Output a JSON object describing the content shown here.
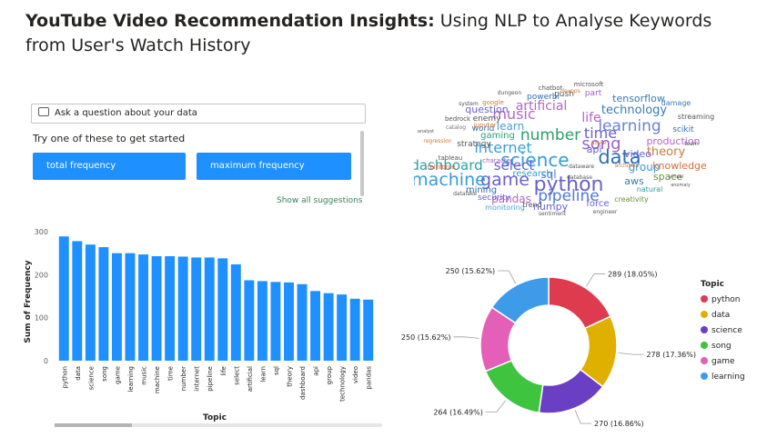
{
  "title": {
    "bold": "YouTube Video Recommendation Insights:",
    "rest": " Using NLP to Analyse Keywords from User's Watch History"
  },
  "qa": {
    "placeholder": "Ask a question about your data",
    "prompt": "Try one of these to get started",
    "suggestions": [
      "total frequency",
      "maximum frequency"
    ],
    "show_all": "Show all suggestions"
  },
  "wordcloud": {
    "words": [
      {
        "text": "python",
        "color": "#6b5fd1"
      },
      {
        "text": "game",
        "color": "#6b5fd1"
      },
      {
        "text": "machine",
        "color": "#3a9bd9"
      },
      {
        "text": "data",
        "color": "#2e6fb5"
      },
      {
        "text": "science",
        "color": "#3a9bd9"
      },
      {
        "text": "song",
        "color": "#9e5fc9"
      },
      {
        "text": "music",
        "color": "#b366c9"
      },
      {
        "text": "number",
        "color": "#2e9e6e"
      },
      {
        "text": "time",
        "color": "#6b5fd1"
      },
      {
        "text": "learning",
        "color": "#6d7fd9"
      },
      {
        "text": "internet",
        "color": "#35a0d8"
      },
      {
        "text": "pipeline",
        "color": "#4e79d9"
      },
      {
        "text": "artificial",
        "color": "#b366c9"
      },
      {
        "text": "technology",
        "color": "#3a7ab5"
      },
      {
        "text": "dashboard",
        "color": "#2e9e9e"
      },
      {
        "text": "select",
        "color": "#6b5fd1"
      },
      {
        "text": "theory",
        "color": "#cc7a3a"
      },
      {
        "text": "life",
        "color": "#b366c9"
      },
      {
        "text": "pandas",
        "color": "#b366c9"
      },
      {
        "text": "group",
        "color": "#3a9bd9"
      },
      {
        "text": "video",
        "color": "#6b5fd1"
      },
      {
        "text": "knowledge",
        "color": "#d96a3a"
      },
      {
        "text": "production",
        "color": "#b366c9"
      },
      {
        "text": "tensorflow",
        "color": "#3a7ab5"
      },
      {
        "text": "question",
        "color": "#6b5fd1"
      },
      {
        "text": "learn",
        "color": "#4ea0d9"
      },
      {
        "text": "api",
        "color": "#6b5fd1"
      },
      {
        "text": "sql",
        "color": "#4e79d9"
      },
      {
        "text": "space",
        "color": "#6b8f3a"
      },
      {
        "text": "aws",
        "color": "#3a7ab5"
      },
      {
        "text": "research",
        "color": "#3a9bd9"
      },
      {
        "text": "mining",
        "color": "#2e6fb5"
      },
      {
        "text": "numpy",
        "color": "#6b5fd1"
      },
      {
        "text": "force",
        "color": "#6b5fd1"
      },
      {
        "text": "gaming",
        "color": "#2e9e6e"
      },
      {
        "text": "strategy",
        "color": "#555555"
      },
      {
        "text": "world",
        "color": "#2e6fb5"
      },
      {
        "text": "enemy",
        "color": "#555555"
      },
      {
        "text": "powerbi",
        "color": "#2e6fb5"
      },
      {
        "text": "push",
        "color": "#555555"
      },
      {
        "text": "part",
        "color": "#9e5fc9"
      },
      {
        "text": "scikit",
        "color": "#2e6fb5"
      },
      {
        "text": "streaming",
        "color": "#555555"
      },
      {
        "text": "damage",
        "color": "#3a7ab5"
      },
      {
        "text": "security",
        "color": "#6b5fd1"
      },
      {
        "text": "monitoring",
        "color": "#4ea0d9"
      },
      {
        "text": "trend",
        "color": "#555555"
      },
      {
        "text": "creativity",
        "color": "#6b8f3a"
      },
      {
        "text": "natural",
        "color": "#2e9e9e"
      },
      {
        "text": "microsoft",
        "color": "#555555"
      },
      {
        "text": "google",
        "color": "#cc7a3a"
      },
      {
        "text": "chatbot",
        "color": "#555555"
      },
      {
        "text": "jupyter",
        "color": "#cc7a3a"
      },
      {
        "text": "catalog",
        "color": "#777777"
      },
      {
        "text": "bedrock",
        "color": "#555555"
      },
      {
        "text": "reinforce",
        "color": "#d96a3a"
      },
      {
        "text": "regression",
        "color": "#cc7a3a"
      },
      {
        "text": "tableau",
        "color": "#555555"
      },
      {
        "text": "datalake",
        "color": "#555555"
      },
      {
        "text": "character",
        "color": "#9e5fc9"
      },
      {
        "text": "sentiment",
        "color": "#555555"
      },
      {
        "text": "engineer",
        "color": "#555555"
      },
      {
        "text": "dungeon",
        "color": "#555555"
      },
      {
        "text": "analyst",
        "color": "#555555"
      },
      {
        "text": "team",
        "color": "#555555"
      },
      {
        "text": "anomaly",
        "color": "#555555"
      },
      {
        "text": "architect",
        "color": "#cc7a3a"
      },
      {
        "text": "dataware",
        "color": "#555555"
      },
      {
        "text": "system",
        "color": "#555555"
      },
      {
        "text": "database",
        "color": "#555555"
      },
      {
        "text": "devops",
        "color": "#cc7a3a"
      },
      {
        "text": "virtual",
        "color": "#555555"
      },
      {
        "text": "azure",
        "color": "#cc7a3a"
      }
    ]
  },
  "chart_data": [
    {
      "type": "bar",
      "xlabel": "Topic",
      "ylabel": "Sum of Frequency",
      "ylim": [
        0,
        300
      ],
      "yticks": [
        0,
        100,
        200,
        300
      ],
      "grid": false,
      "color": "#1e90ff",
      "categories": [
        "python",
        "data",
        "science",
        "song",
        "game",
        "learning",
        "music",
        "machine",
        "time",
        "number",
        "internet",
        "pipeline",
        "life",
        "select",
        "artificial",
        "learn",
        "sql",
        "theory",
        "dashboard",
        "api",
        "group",
        "technology",
        "video",
        "pandas"
      ],
      "values": [
        289,
        278,
        270,
        264,
        250,
        250,
        247,
        243,
        243,
        242,
        240,
        240,
        238,
        224,
        187,
        185,
        183,
        182,
        178,
        162,
        157,
        154,
        144,
        142
      ]
    },
    {
      "type": "pie",
      "donut": true,
      "legend_title": "Topic",
      "legend_position": "right",
      "slices": [
        {
          "label": "python",
          "value": 289,
          "display": "289 (18.05%)",
          "color": "#de3b4f"
        },
        {
          "label": "data",
          "value": 278,
          "display": "278 (17.36%)",
          "color": "#e0b000"
        },
        {
          "label": "science",
          "value": 270,
          "display": "270 (16.86%)",
          "color": "#6a3fc4"
        },
        {
          "label": "song",
          "value": 264,
          "display": "264 (16.49%)",
          "color": "#3ec43e"
        },
        {
          "label": "game",
          "value": 250,
          "display": "250 (15.62%)",
          "color": "#e35fb8"
        },
        {
          "label": "learning",
          "value": 250,
          "display": "250 (15.62%)",
          "color": "#3d9be9"
        }
      ]
    }
  ]
}
